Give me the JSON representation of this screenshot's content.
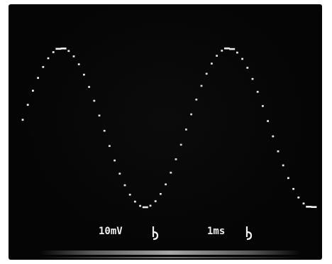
{
  "readout": {
    "volts_per_div": "10mV",
    "time_per_div": "1ms"
  },
  "icons": {
    "volts_channel": "ground-marker-icon",
    "time_channel": "trigger-marker-icon"
  },
  "colors": {
    "screen": "#050505",
    "trace": "#f4f4f4"
  }
}
